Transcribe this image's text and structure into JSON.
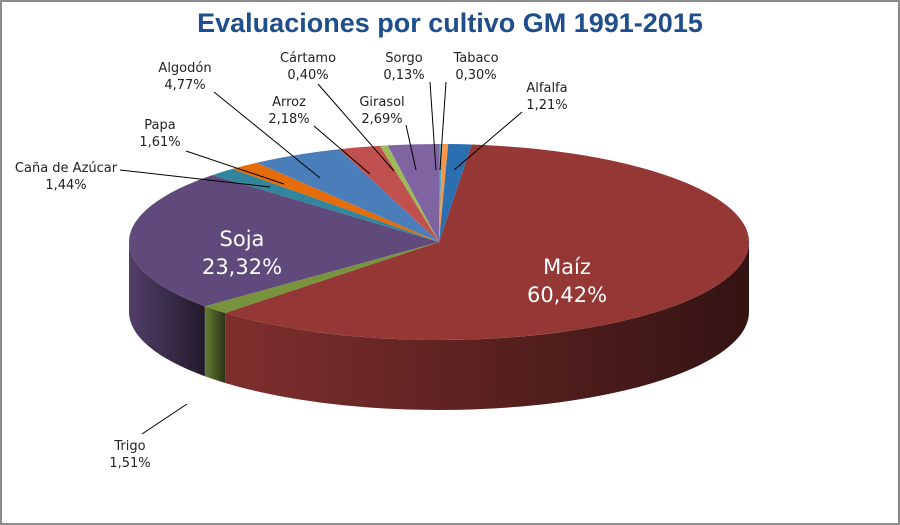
{
  "chart_data": {
    "type": "pie",
    "title": "Evaluaciones por cultivo GM 1991-2015",
    "slices": [
      {
        "name": "Maíz",
        "value": 60.42,
        "label": "60,42%",
        "color": "#953735"
      },
      {
        "name": "Trigo",
        "value": 1.51,
        "label": "1,51%",
        "color": "#77933c"
      },
      {
        "name": "Soja",
        "value": 23.32,
        "label": "23,32%",
        "color": "#604a7b"
      },
      {
        "name": "Caña de Azúcar",
        "value": 1.44,
        "label": "1,44%",
        "color": "#31859c"
      },
      {
        "name": "Papa",
        "value": 1.61,
        "label": "1,61%",
        "color": "#e46c0a"
      },
      {
        "name": "Algodón",
        "value": 4.77,
        "label": "4,77%",
        "color": "#4a7ebb"
      },
      {
        "name": "Arroz",
        "value": 2.18,
        "label": "2,18%",
        "color": "#c0504d"
      },
      {
        "name": "Cártamo",
        "value": 0.4,
        "label": "0,40%",
        "color": "#9bbb59"
      },
      {
        "name": "Girasol",
        "value": 2.69,
        "label": "2,69%",
        "color": "#8064a2"
      },
      {
        "name": "Sorgo",
        "value": 0.13,
        "label": "0,13%",
        "color": "#4bacc6"
      },
      {
        "name": "Tabaco",
        "value": 0.3,
        "label": "0,30%",
        "color": "#f79646"
      },
      {
        "name": "Alfalfa",
        "value": 1.21,
        "label": "1,21%",
        "color": "#2c6fb0"
      }
    ],
    "legend": "none",
    "style": "3d-pie"
  }
}
